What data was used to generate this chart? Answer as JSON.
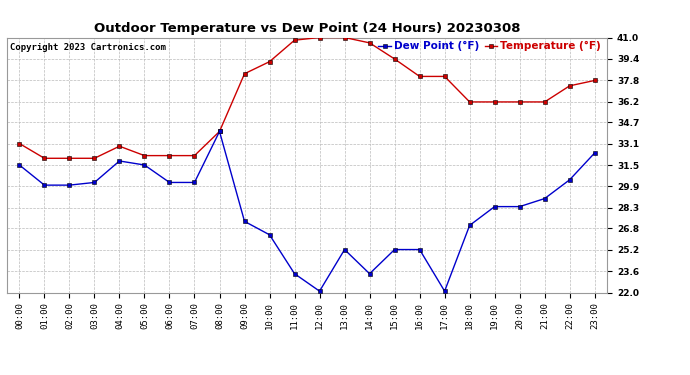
{
  "title": "Outdoor Temperature vs Dew Point (24 Hours) 20230308",
  "copyright": "Copyright 2023 Cartronics.com",
  "legend_dew": "Dew Point (°F)",
  "legend_temp": "Temperature (°F)",
  "hours": [
    "00:00",
    "01:00",
    "02:00",
    "03:00",
    "04:00",
    "05:00",
    "06:00",
    "07:00",
    "08:00",
    "09:00",
    "10:00",
    "11:00",
    "12:00",
    "13:00",
    "14:00",
    "15:00",
    "16:00",
    "17:00",
    "18:00",
    "19:00",
    "20:00",
    "21:00",
    "22:00",
    "23:00"
  ],
  "temperature": [
    33.1,
    32.0,
    32.0,
    32.0,
    32.9,
    32.2,
    32.2,
    32.2,
    34.0,
    38.3,
    39.2,
    40.8,
    41.0,
    41.0,
    40.6,
    39.4,
    38.1,
    38.1,
    36.2,
    36.2,
    36.2,
    36.2,
    37.4,
    37.8
  ],
  "dew_point": [
    31.5,
    30.0,
    30.0,
    30.2,
    31.8,
    31.5,
    30.2,
    30.2,
    34.0,
    27.3,
    26.3,
    23.4,
    22.1,
    25.2,
    23.4,
    25.2,
    25.2,
    22.1,
    27.0,
    28.4,
    28.4,
    29.0,
    30.4,
    32.4
  ],
  "temp_color": "#cc0000",
  "dew_color": "#0000cc",
  "ylim_min": 22.0,
  "ylim_max": 41.0,
  "yticks": [
    22.0,
    23.6,
    25.2,
    26.8,
    28.3,
    29.9,
    31.5,
    33.1,
    34.7,
    36.2,
    37.8,
    39.4,
    41.0
  ],
  "background_color": "#ffffff",
  "grid_color": "#bbbbbb",
  "title_fontsize": 9.5,
  "tick_fontsize": 6.5,
  "copyright_fontsize": 6.5,
  "legend_fontsize": 7.5
}
